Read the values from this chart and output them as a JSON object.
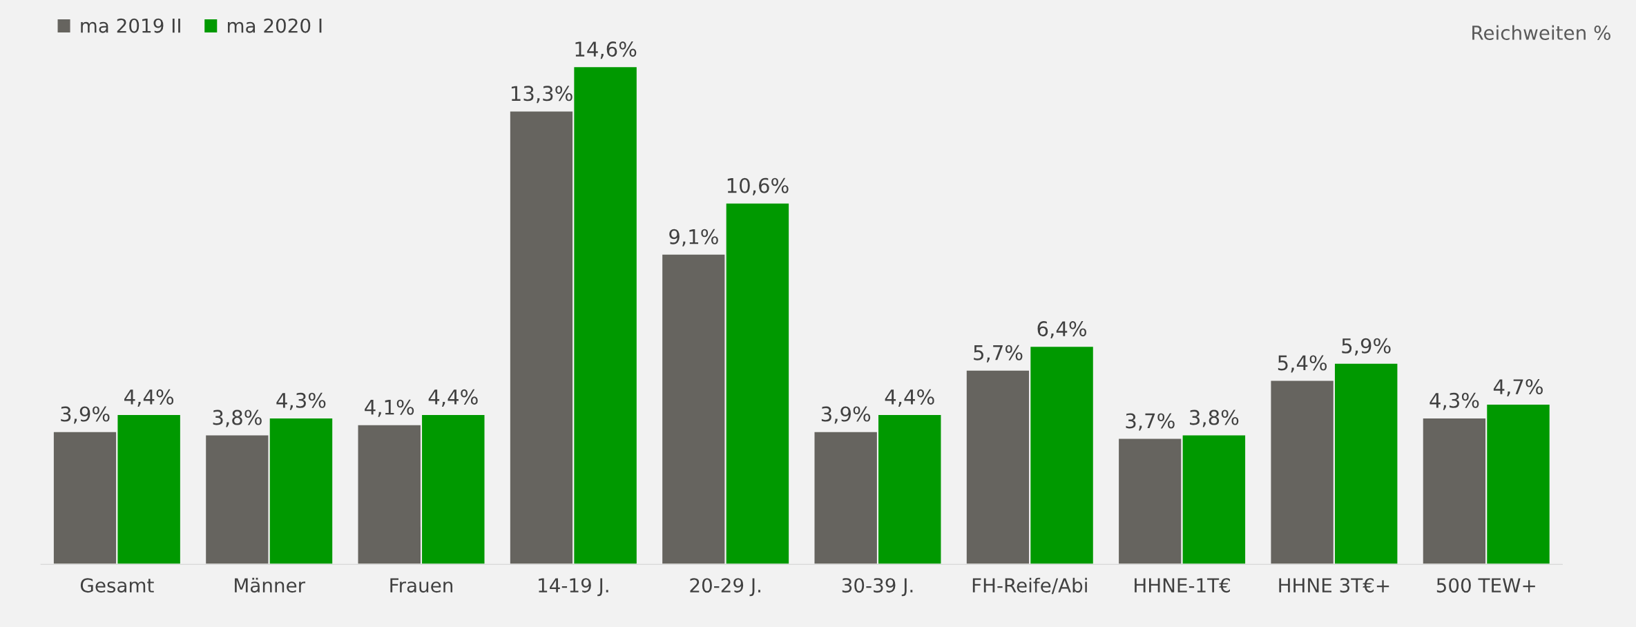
{
  "chart_data": {
    "type": "bar",
    "categories": [
      "Gesamt",
      "Männer",
      "Frauen",
      "14-19 J.",
      "20-29 J.",
      "30-39 J.",
      "FH-Reife/Abi",
      "HHNE-1T€",
      "HHNE 3T€+",
      "500 TEW+"
    ],
    "series": [
      {
        "name": "ma 2019 II",
        "color": "#66645f",
        "values": [
          3.9,
          3.8,
          4.1,
          13.3,
          9.1,
          3.9,
          5.7,
          3.7,
          5.4,
          4.3
        ],
        "value_labels": [
          "3,9%",
          "3,8%",
          "4,1%",
          "13,3%",
          "9,1%",
          "3,9%",
          "5,7%",
          "3,7%",
          "5,4%",
          "4,3%"
        ]
      },
      {
        "name": "ma 2020 I",
        "color": "#009900",
        "values": [
          4.4,
          4.3,
          4.4,
          14.6,
          10.6,
          4.4,
          6.4,
          3.8,
          5.9,
          4.7
        ],
        "value_labels": [
          "4,4%",
          "4,3%",
          "4,4%",
          "14,6%",
          "10,6%",
          "4,4%",
          "6,4%",
          "3,8%",
          "5,9%",
          "4,7%"
        ]
      }
    ],
    "annotations": [
      "Reichweiten %"
    ],
    "legend": "top left"
  }
}
